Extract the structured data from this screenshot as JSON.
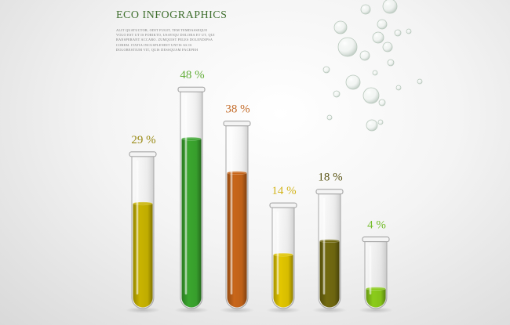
{
  "header": {
    "title": "ECO INFOGRAPHICS",
    "description": "Alit quatuctor, odit fugit, tem temdasseque volo est ut is forikto, usaviqu dolora et ut, qui bansperant accaro. Zumquist peles dolendipsa corem. Itatia incusplendit untis as is dolorestium vit, quis dessquam facepeh"
  },
  "chart_data": {
    "type": "bar",
    "title": "",
    "xlabel": "",
    "ylabel": "",
    "categories": [
      "",
      "",
      "",
      "",
      "",
      ""
    ],
    "values": [
      29,
      48,
      38,
      14,
      18,
      4
    ],
    "value_labels": [
      "29 %",
      "48 %",
      "38 %",
      "14 %",
      "18 %",
      "4 %"
    ],
    "colors": [
      "#c9b400",
      "#3aa62e",
      "#c8661a",
      "#e2c600",
      "#726a10",
      "#8bcc1a"
    ],
    "label_colors": [
      "#9a8a16",
      "#62ad38",
      "#c46c2a",
      "#d3b41a",
      "#5c5617",
      "#74bd2a"
    ],
    "legend": "none",
    "grid": false
  }
}
